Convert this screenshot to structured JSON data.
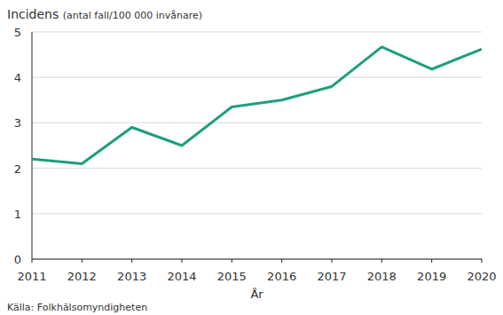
{
  "chart_data": {
    "type": "line",
    "ylabel": "Incidens (antal fall/100 000 invånare)",
    "xlabel": "År",
    "annotation": "Källa: Folkhälsomyndigheten",
    "x": [
      2011,
      2012,
      2013,
      2014,
      2015,
      2016,
      2017,
      2018,
      2019,
      2020
    ],
    "values": [
      2.2,
      2.1,
      2.9,
      2.5,
      3.35,
      3.5,
      3.8,
      4.67,
      4.18,
      4.62
    ],
    "color": "#1f9e7e",
    "xlim": [
      2011,
      2020
    ],
    "xticks": [
      2011,
      2012,
      2013,
      2014,
      2015,
      2016,
      2017,
      2018,
      2019,
      2020
    ],
    "ylim": [
      0,
      5
    ],
    "yticks": [
      0,
      1,
      2,
      3,
      4,
      5
    ],
    "grid": true
  }
}
